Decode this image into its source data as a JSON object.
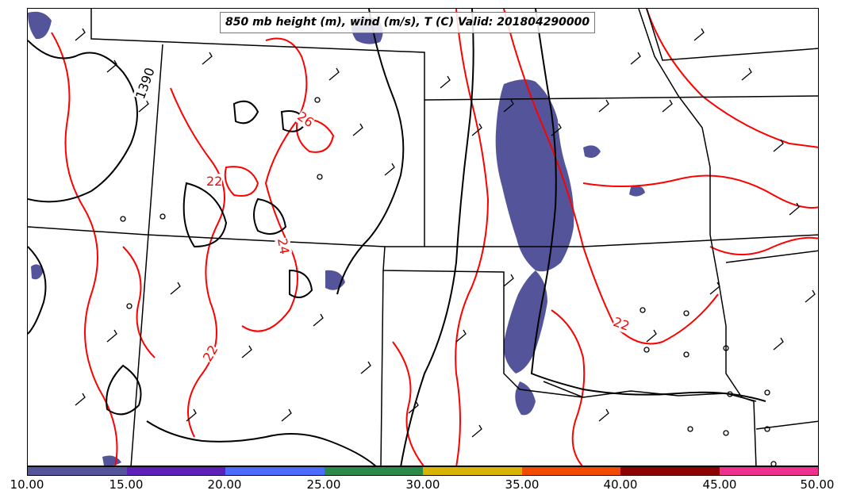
{
  "title": "850 mb height (m), wind (m/s), T (C) Valid: 201804290000",
  "legend": {
    "colors": [
      "#54549a",
      "#5e1fb8",
      "#4d6bff",
      "#2a8a4a",
      "#d6b400",
      "#f24b00",
      "#8b0000",
      "#f03090"
    ],
    "ticks": [
      "10.00",
      "15.00",
      "20.00",
      "25.00",
      "30.00",
      "35.00",
      "40.00",
      "45.00",
      "50.00"
    ]
  },
  "contour_labels": {
    "height": [
      "1390"
    ],
    "temperature": [
      "26",
      "22",
      "24",
      "22",
      "22"
    ]
  },
  "colors": {
    "height_contour": "#000000",
    "temperature_contour": "#ff0000",
    "shading": "#54549a",
    "state_border": "#000000"
  }
}
